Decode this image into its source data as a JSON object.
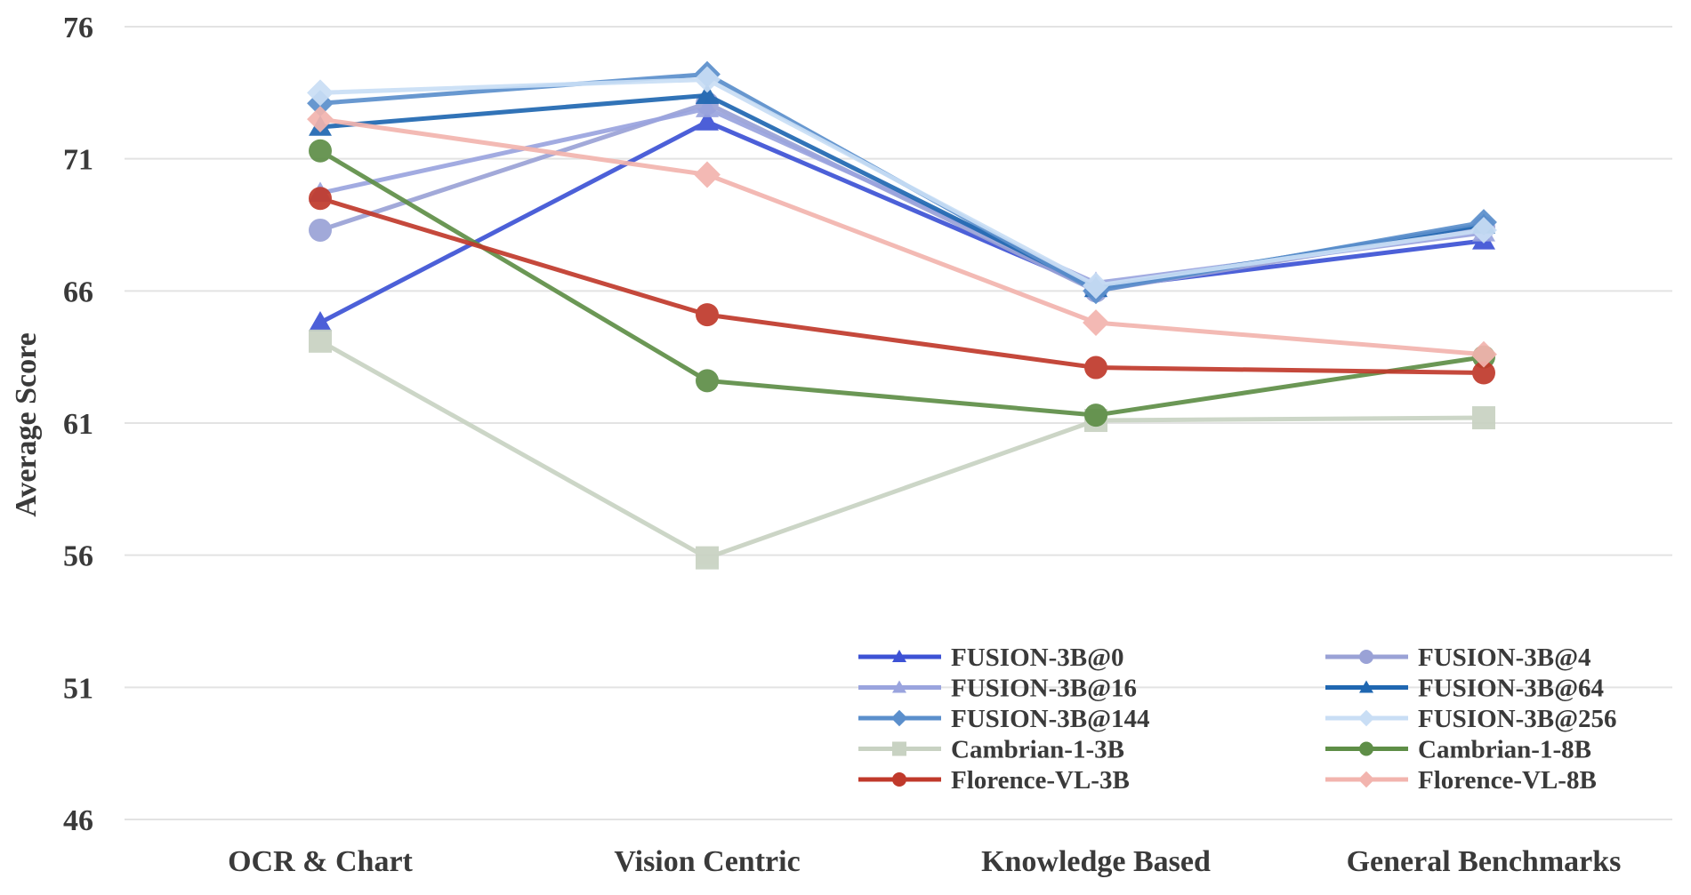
{
  "chart_data": {
    "type": "line",
    "title": "",
    "xlabel": "",
    "ylabel": "Average Score",
    "categories": [
      "OCR & Chart",
      "Vision Centric",
      "Knowledge Based",
      "General Benchmarks"
    ],
    "ylim": [
      46,
      76
    ],
    "yticks": [
      46,
      51,
      56,
      61,
      66,
      71,
      76
    ],
    "grid": "horizontal",
    "legend_position": "bottom-right",
    "series": [
      {
        "name": "FUSION-3B@0",
        "values": [
          64.8,
          72.4,
          66.1,
          67.9
        ],
        "color": "#3d52d5",
        "marker": "triangle"
      },
      {
        "name": "FUSION-3B@4",
        "values": [
          68.3,
          73.1,
          66.0,
          68.4
        ],
        "color": "#9aa2d6",
        "marker": "circle"
      },
      {
        "name": "FUSION-3B@16",
        "values": [
          69.7,
          72.9,
          66.3,
          68.2
        ],
        "color": "#9aa4de",
        "marker": "triangle"
      },
      {
        "name": "FUSION-3B@64",
        "values": [
          72.2,
          73.4,
          66.1,
          68.5
        ],
        "color": "#1f67b1",
        "marker": "triangle"
      },
      {
        "name": "FUSION-3B@144",
        "values": [
          73.1,
          74.2,
          66.0,
          68.6
        ],
        "color": "#5b8fcc",
        "marker": "diamond"
      },
      {
        "name": "FUSION-3B@256",
        "values": [
          73.5,
          74.0,
          66.2,
          68.3
        ],
        "color": "#c9def5",
        "marker": "diamond"
      },
      {
        "name": "Cambrian-1-3B",
        "values": [
          64.1,
          55.9,
          61.1,
          61.2
        ],
        "color": "#c8d2c2",
        "marker": "square"
      },
      {
        "name": "Cambrian-1-8B",
        "values": [
          71.3,
          62.6,
          61.3,
          63.5
        ],
        "color": "#5e8e47",
        "marker": "circle"
      },
      {
        "name": "Florence-VL-3B",
        "values": [
          69.5,
          65.1,
          63.1,
          62.9
        ],
        "color": "#c0392b",
        "marker": "circle"
      },
      {
        "name": "Florence-VL-8B",
        "values": [
          72.5,
          70.4,
          64.8,
          63.6
        ],
        "color": "#f2b4ae",
        "marker": "diamond"
      }
    ]
  },
  "colors": {
    "grid": "#e3e3e3",
    "text": "#3a3a3a"
  }
}
